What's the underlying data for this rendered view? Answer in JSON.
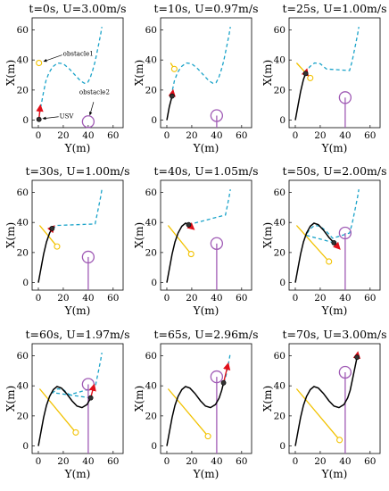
{
  "figure": {
    "xlabel": "Y(m)",
    "ylabel": "X(m)",
    "xticks": [
      "0",
      "20",
      "40",
      "60"
    ],
    "yticks": [
      "0",
      "20",
      "40",
      "60"
    ],
    "annotations": {
      "obstacle1": "obstacle1",
      "obstacle2": "obstacle2",
      "usv": "USV"
    },
    "colors": {
      "desired_path": "#1aa3c9",
      "usv_trajectory": "#000000",
      "obstacle1_path": "#f2c200",
      "obstacle2_path": "#a05bb5",
      "heading_arrow": "#e0101a"
    }
  },
  "chart_data": [
    {
      "type": "line",
      "title": "t=0s, U=3.00m/s",
      "xlabel": "Y(m)",
      "ylabel": "X(m)",
      "xlim": [
        -5,
        68
      ],
      "ylim": [
        -5,
        68
      ],
      "usv": [
        [
          0.5,
          0.5
        ]
      ],
      "heading": [
        [
          0.5,
          0.5
        ],
        [
          1.5,
          9
        ]
      ],
      "obstacle1": [
        [
          0.5,
          38
        ]
      ],
      "obstacle2": [
        [
          40,
          -1
        ]
      ]
    },
    {
      "type": "line",
      "title": "t=10s, U=0.97m/s",
      "xlabel": "Y(m)",
      "ylabel": "X(m)",
      "xlim": [
        -5,
        68
      ],
      "ylim": [
        -5,
        68
      ],
      "usv": [
        [
          0,
          0
        ],
        [
          2,
          9
        ],
        [
          4.2,
          16
        ]
      ],
      "heading": [
        [
          4.2,
          16
        ],
        [
          4.8,
          19
        ]
      ],
      "obstacle1": [
        [
          3,
          38
        ],
        [
          6,
          34
        ]
      ],
      "obstacle2": [
        [
          40,
          -5
        ],
        [
          40,
          3
        ]
      ]
    },
    {
      "type": "line",
      "title": "t=25s, U=1.00m/s",
      "xlabel": "Y(m)",
      "ylabel": "X(m)",
      "xlim": [
        -5,
        68
      ],
      "ylim": [
        -5,
        68
      ],
      "usv": [
        [
          0,
          0
        ],
        [
          2,
          9
        ],
        [
          4.2,
          19
        ],
        [
          6.5,
          27
        ],
        [
          8.3,
          31
        ]
      ],
      "heading": [
        [
          8.3,
          31
        ],
        [
          9,
          33
        ]
      ],
      "obstacle1": [
        [
          1,
          38
        ],
        [
          12,
          28
        ]
      ],
      "obstacle2": [
        [
          40,
          -5
        ],
        [
          40,
          15
        ]
      ]
    },
    {
      "type": "line",
      "title": "t=30s, U=1.00m/s",
      "xlabel": "Y(m)",
      "ylabel": "X(m)",
      "xlim": [
        -5,
        68
      ],
      "ylim": [
        -5,
        68
      ],
      "usv": [
        [
          0,
          0
        ],
        [
          2,
          9
        ],
        [
          4.2,
          19
        ],
        [
          6.5,
          27
        ],
        [
          9,
          33
        ],
        [
          11,
          36
        ]
      ],
      "heading": [
        [
          11,
          36
        ],
        [
          12,
          37
        ]
      ],
      "obstacle1": [
        [
          1,
          38
        ],
        [
          15,
          24
        ]
      ],
      "obstacle2": [
        [
          40,
          -5
        ],
        [
          40,
          17
        ]
      ]
    },
    {
      "type": "line",
      "title": "t=40s, U=1.05m/s",
      "xlabel": "Y(m)",
      "ylabel": "X(m)",
      "xlim": [
        -5,
        68
      ],
      "ylim": [
        -5,
        68
      ],
      "usv": [
        [
          0,
          0
        ],
        [
          2,
          9
        ],
        [
          4.2,
          19
        ],
        [
          6.5,
          27
        ],
        [
          9,
          33
        ],
        [
          12,
          37.5
        ],
        [
          15,
          39.5
        ],
        [
          17.5,
          38.5
        ]
      ],
      "heading": [
        [
          17.5,
          38.5
        ],
        [
          21,
          36
        ]
      ],
      "obstacle1": [
        [
          1,
          38
        ],
        [
          19.5,
          19
        ]
      ],
      "obstacle2": [
        [
          40,
          -5
        ],
        [
          40,
          26
        ]
      ]
    },
    {
      "type": "line",
      "title": "t=50s, U=2.00m/s",
      "xlabel": "Y(m)",
      "ylabel": "X(m)",
      "xlim": [
        -5,
        68
      ],
      "ylim": [
        -5,
        68
      ],
      "usv": [
        [
          0,
          0
        ],
        [
          2,
          9
        ],
        [
          4.2,
          19
        ],
        [
          6.5,
          27
        ],
        [
          9,
          33
        ],
        [
          12,
          37.5
        ],
        [
          15,
          39.5
        ],
        [
          18.5,
          38.5
        ],
        [
          22.5,
          35
        ],
        [
          27,
          30
        ],
        [
          31,
          26.5
        ]
      ],
      "heading": [
        [
          31,
          26.5
        ],
        [
          35,
          23
        ]
      ],
      "obstacle1": [
        [
          1,
          38
        ],
        [
          27,
          14
        ]
      ],
      "obstacle2": [
        [
          40,
          -5
        ],
        [
          40,
          33
        ]
      ]
    },
    {
      "type": "line",
      "title": "t=60s, U=1.97m/s",
      "xlabel": "Y(m)",
      "ylabel": "X(m)",
      "xlim": [
        -5,
        68
      ],
      "ylim": [
        -5,
        68
      ],
      "usv": [
        [
          0,
          0
        ],
        [
          2,
          9
        ],
        [
          4.2,
          19
        ],
        [
          6.5,
          27
        ],
        [
          9,
          33
        ],
        [
          12,
          37.5
        ],
        [
          15,
          39.5
        ],
        [
          18.5,
          38.5
        ],
        [
          22.5,
          35
        ],
        [
          27,
          30
        ],
        [
          31,
          26.5
        ],
        [
          35,
          25.5
        ],
        [
          39,
          27.5
        ],
        [
          42,
          32
        ]
      ],
      "heading": [
        [
          42,
          32
        ],
        [
          44.5,
          40
        ]
      ],
      "obstacle1": [
        [
          1,
          38
        ],
        [
          30,
          9
        ]
      ],
      "obstacle2": [
        [
          40,
          -5
        ],
        [
          40,
          41
        ]
      ]
    },
    {
      "type": "line",
      "title": "t=65s, U=2.96m/s",
      "xlabel": "Y(m)",
      "ylabel": "X(m)",
      "xlim": [
        -5,
        68
      ],
      "ylim": [
        -5,
        68
      ],
      "usv": [
        [
          0,
          0
        ],
        [
          2,
          9
        ],
        [
          4.2,
          19
        ],
        [
          6.5,
          27
        ],
        [
          9,
          33
        ],
        [
          12,
          37.5
        ],
        [
          15,
          39.5
        ],
        [
          18.5,
          38.5
        ],
        [
          22.5,
          35
        ],
        [
          27,
          30
        ],
        [
          31,
          26.5
        ],
        [
          35,
          25.5
        ],
        [
          39,
          27.5
        ],
        [
          42,
          32
        ],
        [
          44,
          37
        ],
        [
          45.5,
          42
        ]
      ],
      "heading": [
        [
          45.5,
          42
        ],
        [
          49,
          54
        ]
      ],
      "obstacle1": [
        [
          1,
          38
        ],
        [
          33,
          6.5
        ]
      ],
      "obstacle2": [
        [
          40,
          -5
        ],
        [
          40,
          46
        ]
      ]
    },
    {
      "type": "line",
      "title": "t=70s, U=3.00m/s",
      "xlabel": "Y(m)",
      "ylabel": "X(m)",
      "xlim": [
        -5,
        68
      ],
      "ylim": [
        -5,
        68
      ],
      "usv": [
        [
          0,
          0
        ],
        [
          2,
          9
        ],
        [
          4.2,
          19
        ],
        [
          6.5,
          27
        ],
        [
          9,
          33
        ],
        [
          12,
          37.5
        ],
        [
          15,
          39.5
        ],
        [
          18.5,
          38.5
        ],
        [
          22.5,
          35
        ],
        [
          27,
          30
        ],
        [
          31,
          26.5
        ],
        [
          35,
          25.5
        ],
        [
          39,
          27.5
        ],
        [
          42,
          32
        ],
        [
          44,
          37
        ],
        [
          46,
          45
        ],
        [
          48,
          53
        ],
        [
          49.5,
          59
        ]
      ],
      "heading": [
        [
          49.5,
          59
        ],
        [
          50,
          61.5
        ]
      ],
      "obstacle1": [
        [
          1,
          38
        ],
        [
          35.5,
          4
        ]
      ],
      "obstacle2": [
        [
          40,
          -5
        ],
        [
          40,
          49
        ]
      ]
    }
  ],
  "desired_path": [
    [
      0,
      0
    ],
    [
      2,
      9
    ],
    [
      4,
      18
    ],
    [
      6,
      26
    ],
    [
      8.5,
      31.5
    ],
    [
      11.5,
      35.5
    ],
    [
      15.5,
      38
    ],
    [
      20,
      37.5
    ],
    [
      25,
      34
    ],
    [
      30,
      29.5
    ],
    [
      34,
      26
    ],
    [
      37,
      24.5
    ],
    [
      39.5,
      25
    ],
    [
      41.5,
      28
    ],
    [
      43.5,
      33
    ],
    [
      45.5,
      39
    ],
    [
      47,
      45
    ],
    [
      48.5,
      51
    ],
    [
      50,
      57
    ],
    [
      51,
      62
    ]
  ]
}
